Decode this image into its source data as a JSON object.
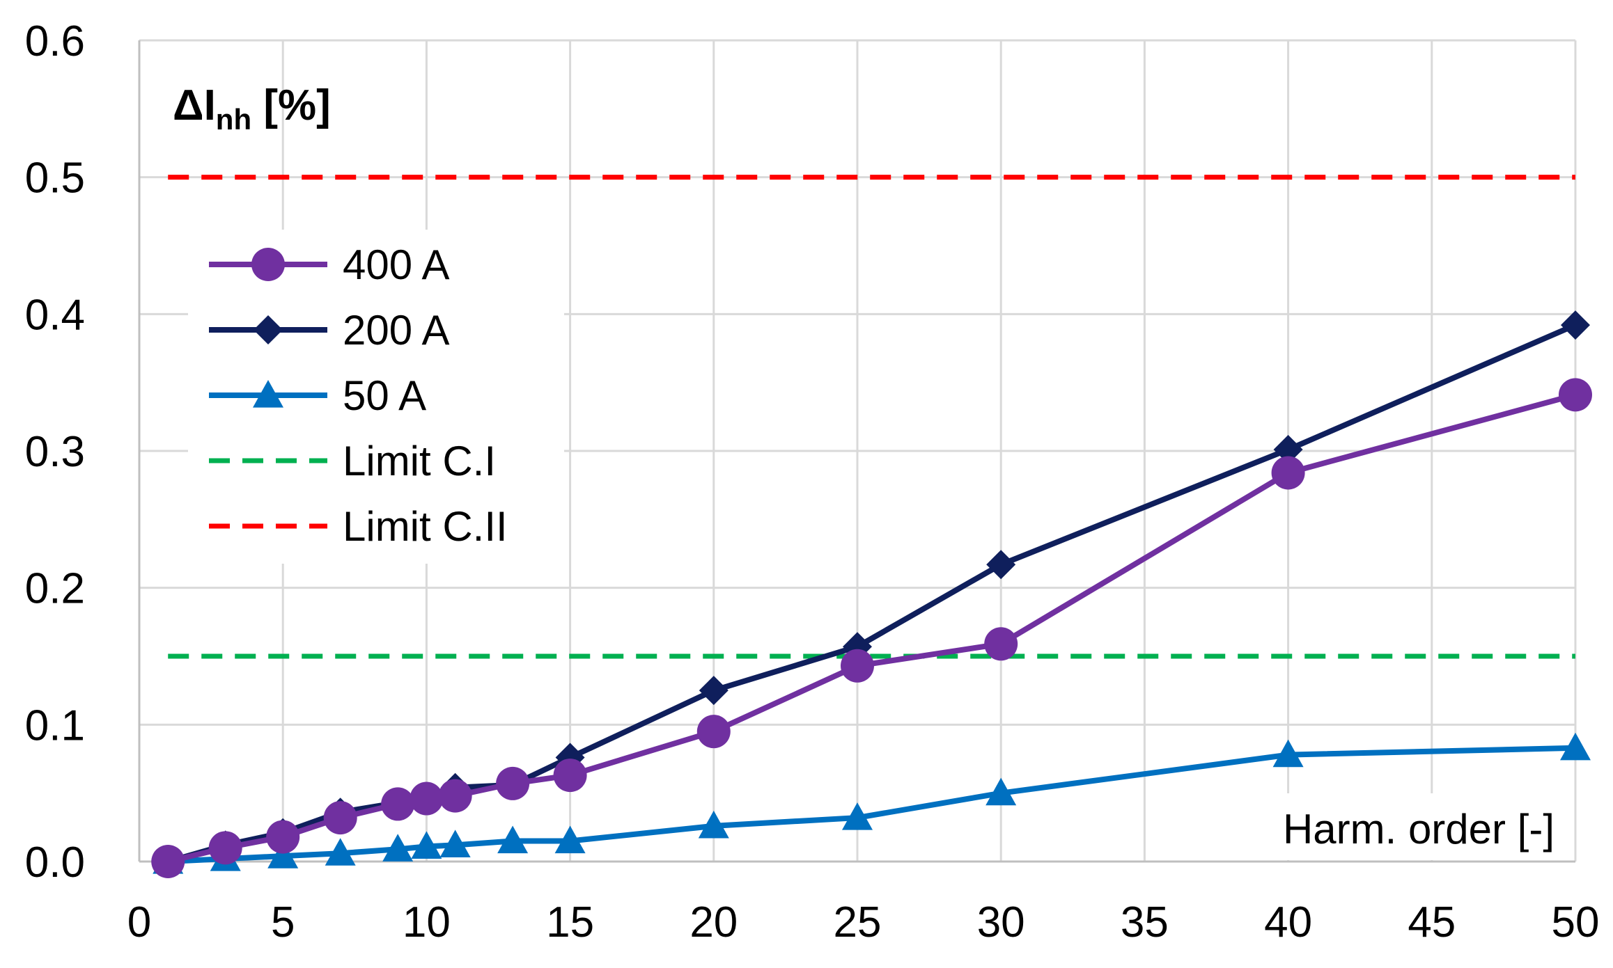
{
  "chart_data": {
    "type": "line",
    "title": "",
    "ylabel": {
      "main": "ΔI",
      "sub": "nh",
      "unit": " [%]"
    },
    "xlabel": "Harm. order [-]",
    "xlim": [
      0,
      50
    ],
    "ylim": [
      0,
      0.6
    ],
    "x_ticks": [
      "0",
      "5",
      "10",
      "15",
      "20",
      "25",
      "30",
      "35",
      "40",
      "45",
      "50"
    ],
    "y_ticks": [
      "0.0",
      "0.1",
      "0.2",
      "0.3",
      "0.4",
      "0.5",
      "0.6"
    ],
    "grid": true,
    "legend_position": "upper-left",
    "series": [
      {
        "name": "400 A",
        "color": "#7030A0",
        "marker": "circle",
        "x": [
          1,
          3,
          5,
          7,
          9,
          10,
          11,
          13,
          15,
          20,
          25,
          30,
          40,
          50
        ],
        "y": [
          0.0,
          0.01,
          0.018,
          0.032,
          0.042,
          0.046,
          0.048,
          0.057,
          0.063,
          0.095,
          0.143,
          0.159,
          0.284,
          0.341
        ]
      },
      {
        "name": "200 A",
        "color": "#0F1F5C",
        "marker": "diamond",
        "x": [
          1,
          3,
          5,
          7,
          9,
          10,
          11,
          13,
          15,
          20,
          25,
          30,
          40,
          50
        ],
        "y": [
          0.0,
          0.012,
          0.021,
          0.036,
          0.043,
          0.045,
          0.054,
          0.056,
          0.076,
          0.125,
          0.157,
          0.217,
          0.301,
          0.392
        ]
      },
      {
        "name": "50 A",
        "color": "#0070C0",
        "marker": "triangle",
        "x": [
          1,
          3,
          5,
          7,
          9,
          10,
          11,
          13,
          15,
          20,
          25,
          30,
          40,
          50
        ],
        "y": [
          0.0,
          0.002,
          0.004,
          0.006,
          0.009,
          0.011,
          0.012,
          0.015,
          0.015,
          0.026,
          0.032,
          0.05,
          0.078,
          0.083
        ]
      },
      {
        "name": "Limit C.I",
        "color": "#00B050",
        "dashed": true,
        "x": [
          1,
          50
        ],
        "y": [
          0.15,
          0.15
        ]
      },
      {
        "name": "Limit C.II",
        "color": "#FF0000",
        "dashed": true,
        "x": [
          1,
          50
        ],
        "y": [
          0.5,
          0.5
        ]
      }
    ]
  }
}
